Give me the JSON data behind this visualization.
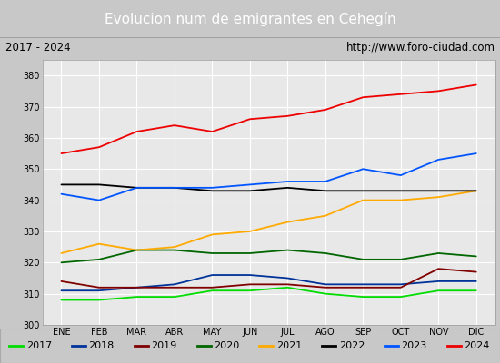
{
  "title": "Evolucion num de emigrantes en Cehegín",
  "subtitle_left": "2017 - 2024",
  "subtitle_right": "http://www.foro-ciudad.com",
  "ylim": [
    300,
    385
  ],
  "yticks": [
    300,
    310,
    320,
    330,
    340,
    350,
    360,
    370,
    380
  ],
  "months": [
    "ENE",
    "FEB",
    "MAR",
    "ABR",
    "MAY",
    "JUN",
    "JUL",
    "AGO",
    "SEP",
    "OCT",
    "NOV",
    "DIC"
  ],
  "series": {
    "2017": {
      "color": "#00dd00",
      "values": [
        308,
        308,
        309,
        309,
        311,
        311,
        312,
        310,
        309,
        309,
        311,
        311
      ]
    },
    "2018": {
      "color": "#003399",
      "values": [
        311,
        311,
        312,
        313,
        316,
        316,
        315,
        313,
        313,
        313,
        314,
        314
      ]
    },
    "2019": {
      "color": "#800000",
      "values": [
        314,
        312,
        312,
        312,
        312,
        313,
        313,
        312,
        312,
        312,
        318,
        317
      ]
    },
    "2020": {
      "color": "#006600",
      "values": [
        320,
        321,
        324,
        324,
        323,
        323,
        324,
        323,
        321,
        321,
        323,
        322
      ]
    },
    "2021": {
      "color": "#ffaa00",
      "values": [
        323,
        326,
        324,
        325,
        329,
        330,
        333,
        335,
        340,
        340,
        341,
        343
      ]
    },
    "2022": {
      "color": "#000000",
      "values": [
        345,
        345,
        344,
        344,
        343,
        343,
        344,
        343,
        343,
        343,
        343,
        343
      ]
    },
    "2023": {
      "color": "#0055ff",
      "values": [
        342,
        340,
        344,
        344,
        344,
        345,
        346,
        346,
        350,
        348,
        353,
        355
      ]
    },
    "2024": {
      "color": "#ee0000",
      "values": [
        355,
        357,
        362,
        364,
        362,
        366,
        367,
        369,
        373,
        374,
        375,
        377
      ]
    }
  },
  "title_bg_color": "#4a8fd4",
  "title_text_color": "#ffffff",
  "subtitle_bg_color": "#e0e0e0",
  "plot_bg_color": "#e8e8e8",
  "grid_color": "#ffffff",
  "fig_bg_color": "#c8c8c8",
  "legend_bg_color": "#f0f0f0",
  "title_fontsize": 11,
  "subtitle_fontsize": 8.5,
  "tick_fontsize": 7,
  "legend_fontsize": 8
}
